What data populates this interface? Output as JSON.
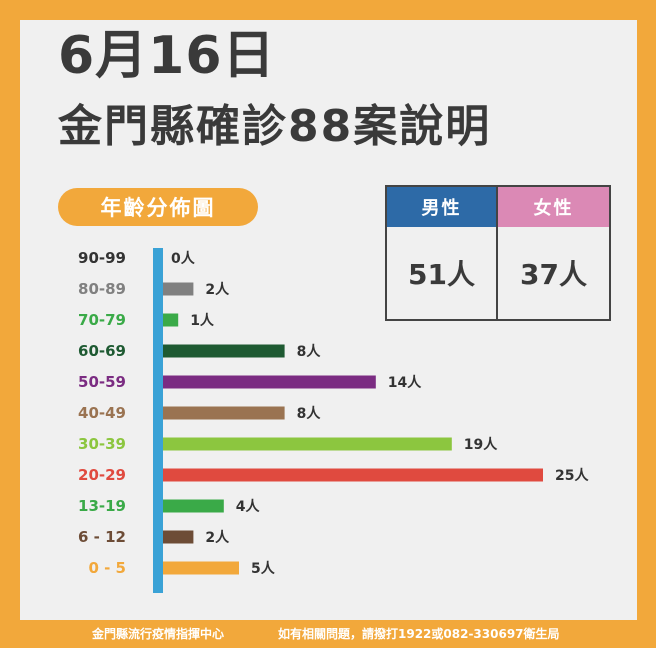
{
  "header": {
    "date": "6月16日",
    "title": "金門縣確診88案說明",
    "section_label": "年齡分佈圖"
  },
  "gender": {
    "male_label": "男性",
    "male_value": "51人",
    "female_label": "女性",
    "female_value": "37人",
    "male_color": "#2d6aa7",
    "female_color": "#db89b5"
  },
  "chart_data": {
    "type": "bar",
    "orientation": "horizontal",
    "title": "年齡分佈圖",
    "unit": "人",
    "categories": [
      "90-99",
      "80-89",
      "70-79",
      "60-69",
      "50-59",
      "40-49",
      "30-39",
      "20-29",
      "13-19",
      "6 - 12",
      "0  -  5"
    ],
    "values": [
      0,
      2,
      1,
      8,
      14,
      8,
      19,
      25,
      4,
      2,
      5
    ],
    "data_labels": [
      "0人",
      "2人",
      "1人",
      "8人",
      "14人",
      "8人",
      "19人",
      "25人",
      "4人",
      "2人",
      "5人"
    ],
    "colors": [
      "#333333",
      "#808080",
      "#3aaa48",
      "#1e5a32",
      "#7b2c82",
      "#9a7351",
      "#8cc63f",
      "#e04a3f",
      "#3aaa48",
      "#6d4c36",
      "#f2a83b"
    ],
    "axis_color": "#3aa2d6",
    "xlim": [
      0,
      25
    ]
  },
  "footer": {
    "left": "金門縣流行疫情指揮中心",
    "right": "如有相關問題，請撥打1922或082-330697衛生局"
  }
}
